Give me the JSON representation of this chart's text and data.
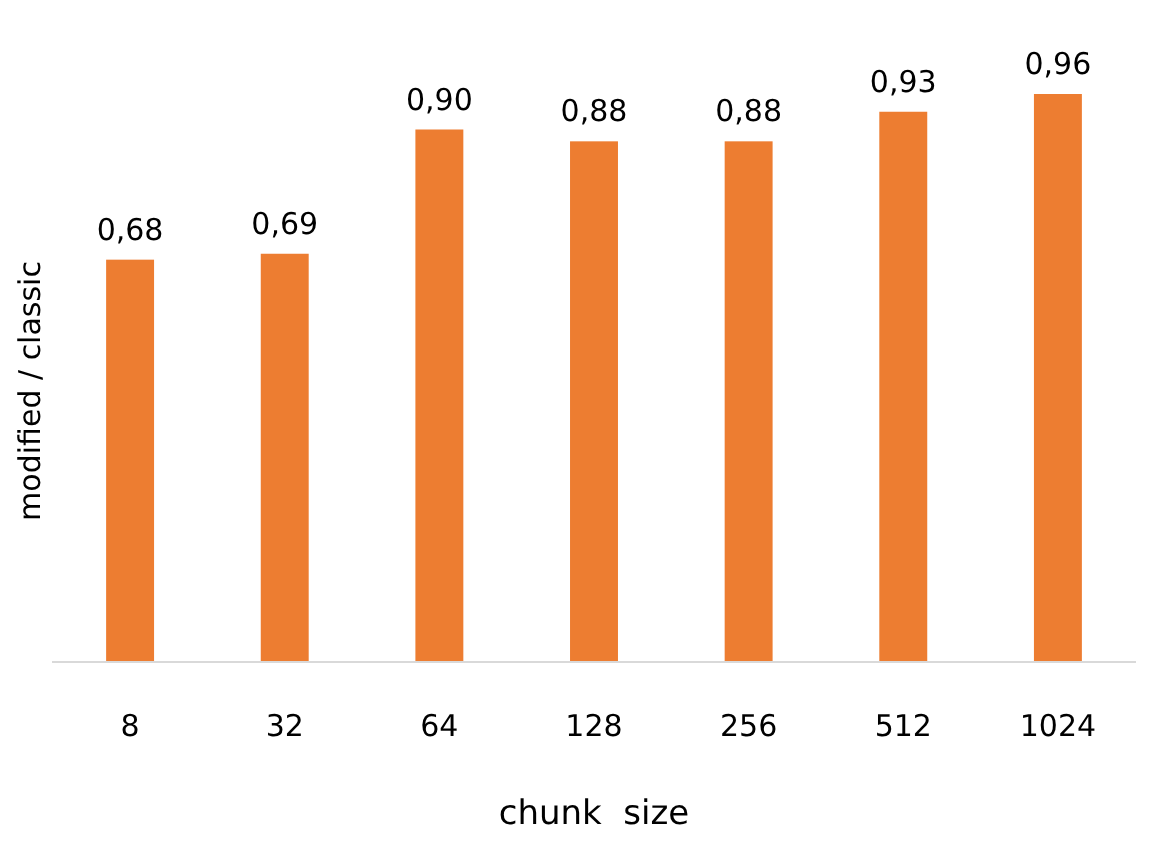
{
  "chart_data": {
    "type": "bar",
    "xlabel": "chunk  size",
    "ylabel": "modified / classic",
    "categories": [
      "8",
      "32",
      "64",
      "128",
      "256",
      "512",
      "1024"
    ],
    "values": [
      0.68,
      0.69,
      0.9,
      0.88,
      0.88,
      0.93,
      0.96
    ],
    "value_labels": [
      "0,68",
      "0,69",
      "0,90",
      "0,88",
      "0,88",
      "0,93",
      "0,96"
    ],
    "color": "#ed7d31"
  }
}
